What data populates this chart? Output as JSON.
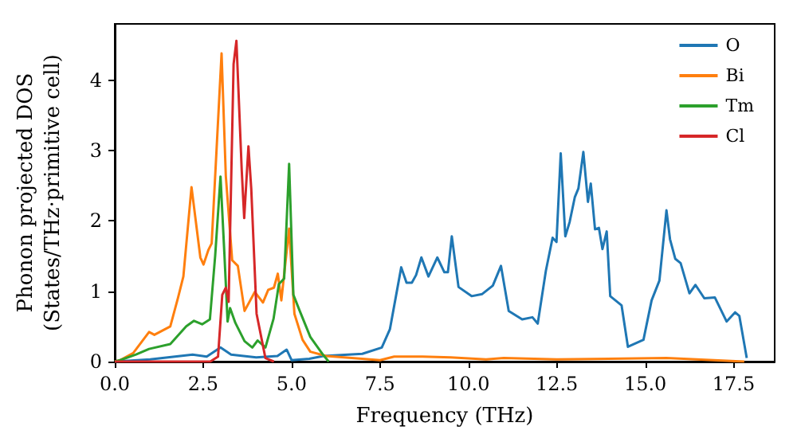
{
  "chart_data": {
    "type": "line",
    "xlabel": "Frequency (THz)",
    "ylabel": "Phonon projected DOS\n(States/THz·primitive cell)",
    "xlim": [
      0,
      18.66
    ],
    "ylim": [
      0,
      4.8
    ],
    "xticks": [
      {
        "value": 0,
        "label": "0.0"
      },
      {
        "value": 2.5,
        "label": "2.5"
      },
      {
        "value": 5,
        "label": "5.0"
      },
      {
        "value": 7.5,
        "label": "7.5"
      },
      {
        "value": 10,
        "label": "10.0"
      },
      {
        "value": 12.5,
        "label": "12.5"
      },
      {
        "value": 15,
        "label": "15.0"
      },
      {
        "value": 17.5,
        "label": "17.5"
      }
    ],
    "yticks": [
      0,
      1,
      2,
      3,
      4
    ],
    "grid": false,
    "legend": "top right",
    "marker": "none",
    "line_style": "solid",
    "series": [
      {
        "name": "O",
        "color": "#1f77b4",
        "x": [
          0,
          1,
          2.2,
          2.6,
          2.99,
          3.29,
          4.0,
          4.6,
          4.86,
          5.0,
          5.5,
          5.9,
          7.0,
          7.55,
          7.78,
          8.1,
          8.25,
          8.4,
          8.52,
          8.67,
          8.87,
          9.12,
          9.32,
          9.42,
          9.53,
          9.72,
          10.09,
          10.39,
          10.69,
          10.92,
          11.14,
          11.52,
          11.81,
          11.96,
          12.19,
          12.38,
          12.49,
          12.61,
          12.74,
          12.86,
          13.01,
          13.11,
          13.25,
          13.38,
          13.46,
          13.58,
          13.69,
          13.79,
          13.91,
          14.01,
          14.33,
          14.51,
          14.95,
          15.18,
          15.4,
          15.6,
          15.7,
          15.85,
          16.0,
          16.25,
          16.42,
          16.67,
          16.97,
          17.3,
          17.54,
          17.66,
          17.87
        ],
        "values": [
          0,
          0.03,
          0.1,
          0.07,
          0.2,
          0.1,
          0.06,
          0.08,
          0.17,
          0.02,
          0.04,
          0.08,
          0.11,
          0.2,
          0.46,
          1.34,
          1.12,
          1.12,
          1.23,
          1.48,
          1.21,
          1.48,
          1.27,
          1.27,
          1.78,
          1.06,
          0.93,
          0.96,
          1.08,
          1.36,
          0.72,
          0.6,
          0.63,
          0.54,
          1.29,
          1.76,
          1.7,
          2.96,
          1.78,
          1.98,
          2.34,
          2.46,
          2.98,
          2.27,
          2.53,
          1.88,
          1.9,
          1.6,
          1.85,
          0.93,
          0.8,
          0.21,
          0.31,
          0.87,
          1.15,
          2.15,
          1.74,
          1.46,
          1.4,
          0.97,
          1.09,
          0.9,
          0.91,
          0.57,
          0.7,
          0.65,
          0.05
        ]
      },
      {
        "name": "Bi",
        "color": "#ff7f0e",
        "x": [
          0,
          0.15,
          0.52,
          0.97,
          1.12,
          1.57,
          1.79,
          1.94,
          2.17,
          2.42,
          2.51,
          2.65,
          2.74,
          3.02,
          3.14,
          3.32,
          3.48,
          3.67,
          3.96,
          4.19,
          4.34,
          4.5,
          4.61,
          4.71,
          4.93,
          5.08,
          5.31,
          5.53,
          5.98,
          7.5,
          7.9,
          8.7,
          9.5,
          10.5,
          11,
          12.5,
          15.6,
          17.8
        ],
        "values": [
          0,
          0.02,
          0.12,
          0.42,
          0.38,
          0.5,
          0.91,
          1.21,
          2.48,
          1.48,
          1.38,
          1.59,
          1.68,
          4.38,
          2.64,
          1.44,
          1.36,
          0.72,
          0.99,
          0.84,
          1.02,
          1.05,
          1.25,
          0.87,
          1.89,
          0.68,
          0.31,
          0.14,
          0.08,
          0.02,
          0.07,
          0.07,
          0.06,
          0.03,
          0.05,
          0.03,
          0.05,
          0
        ]
      },
      {
        "name": "Tm",
        "color": "#2ca02c",
        "x": [
          0,
          0.15,
          0.6,
          0.97,
          1.57,
          2.02,
          2.24,
          2.47,
          2.69,
          2.84,
          2.99,
          3.1,
          3.19,
          3.26,
          3.41,
          3.67,
          3.89,
          4.04,
          4.26,
          4.49,
          4.64,
          4.79,
          4.93,
          5.05,
          5.23,
          5.53,
          5.9,
          6.05
        ],
        "values": [
          0,
          0.02,
          0.1,
          0.18,
          0.25,
          0.5,
          0.58,
          0.53,
          0.6,
          1.51,
          2.63,
          1.53,
          0.57,
          0.76,
          0.55,
          0.29,
          0.2,
          0.3,
          0.2,
          0.61,
          1.1,
          1.18,
          2.81,
          0.95,
          0.72,
          0.35,
          0.09,
          0
        ]
      },
      {
        "name": "Cl",
        "color": "#d62728",
        "x": [
          0,
          2.7,
          2.92,
          3.04,
          3.14,
          3.22,
          3.36,
          3.44,
          3.59,
          3.66,
          3.78,
          3.86,
          4.01,
          4.26,
          4.5
        ],
        "values": [
          0,
          0,
          0.07,
          0.95,
          1.05,
          0.85,
          4.23,
          4.56,
          2.72,
          2.04,
          3.06,
          2.45,
          0.68,
          0.05,
          0
        ]
      }
    ]
  }
}
